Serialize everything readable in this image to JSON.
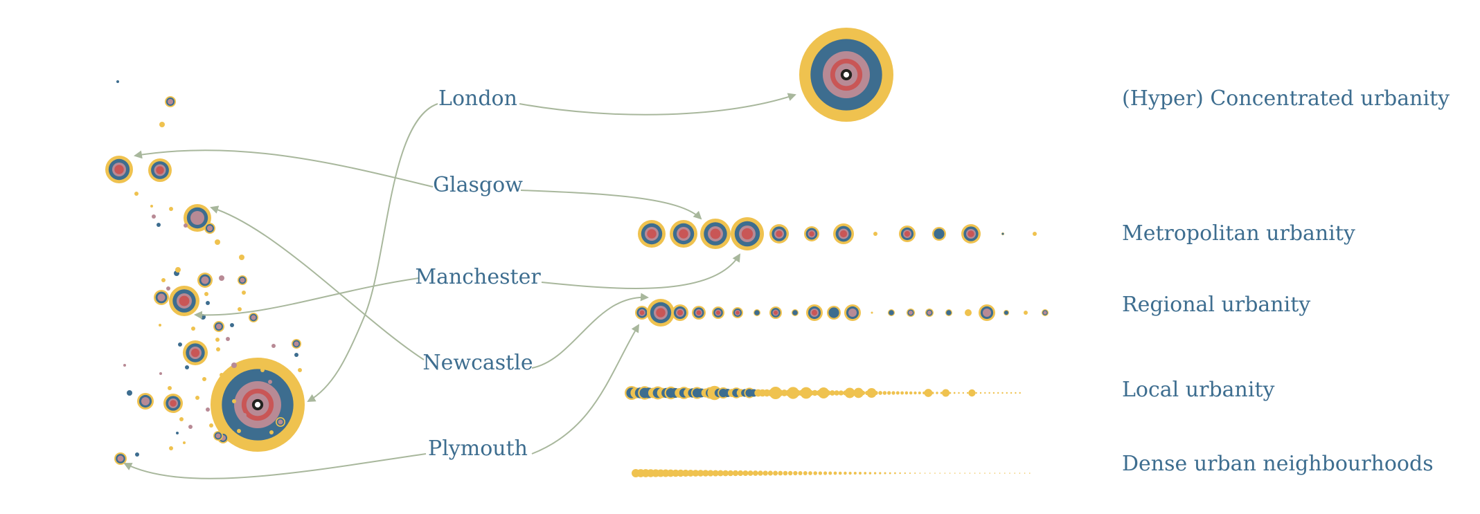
{
  "cities": [
    "London",
    "Glasgow",
    "Manchester",
    "Newcastle",
    "Plymouth"
  ],
  "categories": [
    "(Hyper) Concentrated urbanity",
    "Metropolitan urbanity",
    "Regional urbanity",
    "Local urbanity",
    "Dense urban neighbourhoods"
  ],
  "colors": {
    "ring_outer": "#efc24f",
    "ring_mid": "#3d6d8f",
    "ring_inner": "#b88a95",
    "ring_core": "#c95656",
    "center": "#23231f",
    "arrow": "#a8b79c",
    "label": "#3d6d8f"
  },
  "map_icon": "uk-urbanity-map",
  "arrow_icon": "curved-arrow"
}
